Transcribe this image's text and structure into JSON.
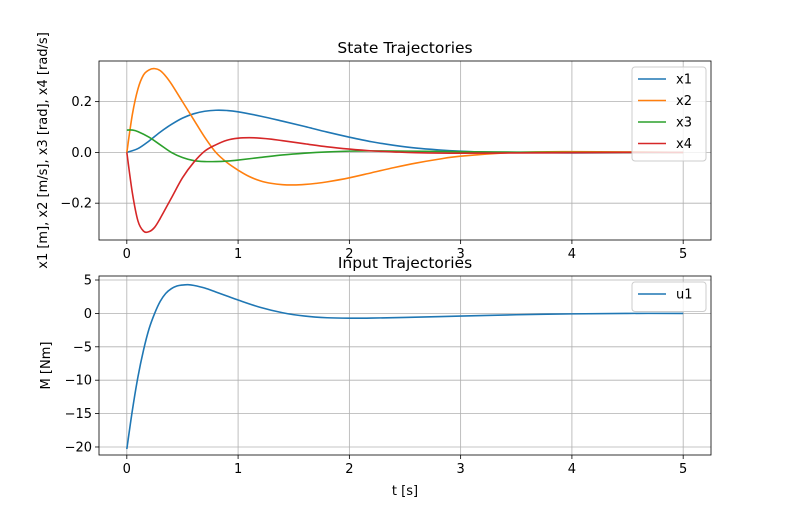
{
  "chart_data": [
    {
      "type": "line",
      "title": "State Trajectories",
      "xlabel": "",
      "ylabel": "x1 [m], x2 [m/s], x3 [rad], x4 [rad/s]",
      "xlim": [
        -0.25,
        5.25
      ],
      "ylim": [
        -0.345,
        0.36
      ],
      "xticks": [
        0,
        1,
        2,
        3,
        4,
        5
      ],
      "xtick_labels": [
        "0",
        "1",
        "2",
        "3",
        "4",
        "5"
      ],
      "yticks": [
        -0.2,
        0.0,
        0.2
      ],
      "ytick_labels": [
        "−0.2",
        "0.0",
        "0.2"
      ],
      "grid": true,
      "legend": "upper-right",
      "series": [
        {
          "name": "x1",
          "color": "#1f77b4",
          "x": [
            0,
            0.1,
            0.2,
            0.3,
            0.4,
            0.5,
            0.6,
            0.7,
            0.8,
            0.9,
            1.0,
            1.2,
            1.4,
            1.6,
            1.8,
            2.0,
            2.2,
            2.4,
            2.6,
            2.8,
            3.0,
            3.25,
            3.5,
            4.0,
            4.5,
            5.0
          ],
          "y": [
            0,
            0.015,
            0.045,
            0.08,
            0.11,
            0.135,
            0.152,
            0.162,
            0.166,
            0.165,
            0.16,
            0.143,
            0.123,
            0.102,
            0.08,
            0.06,
            0.042,
            0.028,
            0.017,
            0.01,
            0.005,
            0.001,
            -0.001,
            -0.002,
            -0.001,
            0
          ]
        },
        {
          "name": "x2",
          "color": "#ff7f0e",
          "x": [
            0,
            0.05,
            0.1,
            0.15,
            0.2,
            0.25,
            0.3,
            0.35,
            0.4,
            0.5,
            0.6,
            0.7,
            0.8,
            0.9,
            1.0,
            1.1,
            1.2,
            1.3,
            1.4,
            1.5,
            1.6,
            1.7,
            1.8,
            2.0,
            2.2,
            2.4,
            2.6,
            2.8,
            3.0,
            3.5,
            4.0,
            4.5,
            5.0
          ],
          "y": [
            0,
            0.15,
            0.25,
            0.305,
            0.325,
            0.33,
            0.322,
            0.3,
            0.27,
            0.2,
            0.13,
            0.06,
            0.0,
            -0.04,
            -0.07,
            -0.095,
            -0.112,
            -0.122,
            -0.127,
            -0.128,
            -0.126,
            -0.122,
            -0.116,
            -0.1,
            -0.08,
            -0.06,
            -0.042,
            -0.027,
            -0.015,
            0.0,
            0.003,
            0.002,
            0.0
          ]
        },
        {
          "name": "x3",
          "color": "#2ca02c",
          "x": [
            0,
            0.05,
            0.1,
            0.2,
            0.3,
            0.4,
            0.5,
            0.6,
            0.7,
            0.8,
            0.9,
            1.0,
            1.2,
            1.4,
            1.6,
            1.8,
            2.0,
            2.2,
            2.5,
            3.0,
            3.5,
            4.0,
            4.5,
            5.0
          ],
          "y": [
            0.088,
            0.088,
            0.082,
            0.06,
            0.03,
            0.0,
            -0.02,
            -0.032,
            -0.036,
            -0.036,
            -0.034,
            -0.03,
            -0.02,
            -0.01,
            -0.003,
            0.002,
            0.005,
            0.006,
            0.005,
            0.003,
            0.001,
            0.0,
            0.0,
            0.0
          ]
        },
        {
          "name": "x4",
          "color": "#d62728",
          "x": [
            0,
            0.05,
            0.1,
            0.15,
            0.2,
            0.25,
            0.3,
            0.4,
            0.5,
            0.6,
            0.7,
            0.8,
            0.9,
            1.0,
            1.1,
            1.2,
            1.3,
            1.4,
            1.6,
            1.8,
            2.0,
            2.2,
            2.4,
            2.6,
            3.0,
            3.5,
            4.0,
            4.5,
            5.0
          ],
          "y": [
            0,
            -0.16,
            -0.27,
            -0.31,
            -0.312,
            -0.295,
            -0.26,
            -0.18,
            -0.1,
            -0.04,
            0.005,
            0.03,
            0.048,
            0.056,
            0.058,
            0.056,
            0.052,
            0.046,
            0.034,
            0.022,
            0.013,
            0.006,
            0.002,
            -0.001,
            -0.003,
            -0.002,
            -0.001,
            0.0,
            0.0
          ]
        }
      ]
    },
    {
      "type": "line",
      "title": "Input Trajectories",
      "xlabel": "t [s]",
      "ylabel": "M [Nm]",
      "xlim": [
        -0.25,
        5.25
      ],
      "ylim": [
        -21.2,
        5.6
      ],
      "xticks": [
        0,
        1,
        2,
        3,
        4,
        5
      ],
      "xtick_labels": [
        "0",
        "1",
        "2",
        "3",
        "4",
        "5"
      ],
      "yticks": [
        -20,
        -15,
        -10,
        -5,
        0,
        5
      ],
      "ytick_labels": [
        "−20",
        "−15",
        "−10",
        "−5",
        "0",
        "5"
      ],
      "grid": true,
      "legend": "upper-right",
      "series": [
        {
          "name": "u1",
          "color": "#1f77b4",
          "x": [
            0,
            0.05,
            0.1,
            0.15,
            0.2,
            0.25,
            0.3,
            0.35,
            0.4,
            0.45,
            0.5,
            0.55,
            0.6,
            0.7,
            0.8,
            0.9,
            1.0,
            1.2,
            1.4,
            1.6,
            1.8,
            2.0,
            2.2,
            2.5,
            3.0,
            3.5,
            4.0,
            4.5,
            5.0
          ],
          "y": [
            -20.3,
            -14.5,
            -9.5,
            -5.5,
            -2.3,
            0.0,
            1.8,
            3.0,
            3.7,
            4.1,
            4.25,
            4.3,
            4.2,
            3.8,
            3.2,
            2.6,
            2.0,
            0.9,
            0.1,
            -0.4,
            -0.65,
            -0.72,
            -0.7,
            -0.6,
            -0.4,
            -0.2,
            -0.07,
            0.0,
            0.0
          ]
        }
      ]
    }
  ]
}
